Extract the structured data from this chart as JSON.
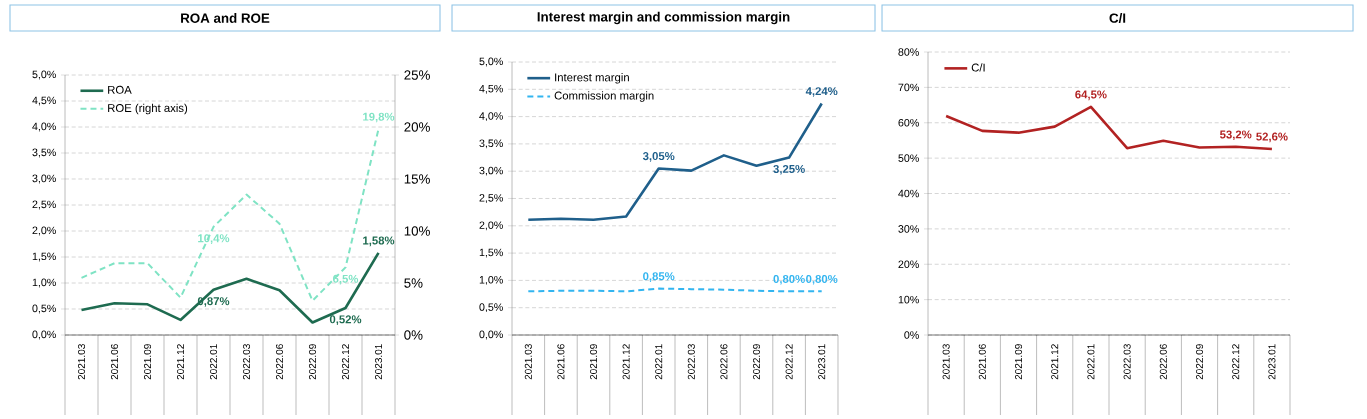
{
  "chart_data": [
    {
      "type": "line",
      "title": "ROA and ROE",
      "categories": [
        "2021.03",
        "2021.06",
        "2021.09",
        "2021.12",
        "2022.01",
        "2022.03",
        "2022.06",
        "2022.09",
        "2022.12",
        "2023.01"
      ],
      "series": [
        {
          "name": "ROA",
          "color": "#1e6b50",
          "line_style": "solid",
          "values": [
            0.48,
            0.61,
            0.59,
            0.29,
            0.87,
            1.08,
            0.86,
            0.24,
            0.52,
            1.58
          ],
          "value_labels": [
            null,
            null,
            null,
            null,
            "0,87%",
            null,
            null,
            null,
            "0,52%",
            "1,58%"
          ]
        },
        {
          "name": "ROE (right axis)",
          "color": "#7fe3c4",
          "line_style": "dashed",
          "axis": "y2",
          "values": [
            5.5,
            6.9,
            6.9,
            3.6,
            10.4,
            13.5,
            10.7,
            3.3,
            6.5,
            19.8
          ],
          "value_labels": [
            null,
            null,
            null,
            null,
            "10,4%",
            null,
            null,
            null,
            "6,5%",
            "19,8%"
          ]
        }
      ],
      "ylim": [
        0,
        5
      ],
      "yticks": [
        {
          "value": 0,
          "label": "0,0%"
        },
        {
          "value": 0.5,
          "label": "0,5%"
        },
        {
          "value": 1,
          "label": "1,0%"
        },
        {
          "value": 1.5,
          "label": "1,5%"
        },
        {
          "value": 2,
          "label": "2,0%"
        },
        {
          "value": 2.5,
          "label": "2,5%"
        },
        {
          "value": 3,
          "label": "3,0%"
        },
        {
          "value": 3.5,
          "label": "3,5%"
        },
        {
          "value": 4,
          "label": "4,0%"
        },
        {
          "value": 4.5,
          "label": "4,5%"
        },
        {
          "value": 5,
          "label": "5,0%"
        }
      ],
      "y2lim": [
        0,
        25
      ],
      "y2ticks": [
        {
          "value": 0,
          "label": "0%"
        },
        {
          "value": 5,
          "label": "5%"
        },
        {
          "value": 10,
          "label": "10%"
        },
        {
          "value": 15,
          "label": "15%"
        },
        {
          "value": 20,
          "label": "20%"
        },
        {
          "value": 25,
          "label": "25%"
        }
      ],
      "grid": "y",
      "legend": "top left"
    },
    {
      "type": "line",
      "title": "Interest margin and commission margin",
      "categories": [
        "2021.03",
        "2021.06",
        "2021.09",
        "2021.12",
        "2022.01",
        "2022.03",
        "2022.06",
        "2022.09",
        "2022.12",
        "2023.01"
      ],
      "series": [
        {
          "name": "Interest margin",
          "color": "#1f5f8b",
          "line_style": "solid",
          "values": [
            2.11,
            2.13,
            2.11,
            2.17,
            3.05,
            3.01,
            3.29,
            3.1,
            3.25,
            4.24
          ],
          "value_labels": [
            null,
            null,
            null,
            null,
            "3,05%",
            null,
            null,
            null,
            "3,25%",
            "4,24%"
          ]
        },
        {
          "name": "Commission margin",
          "color": "#33b5f0",
          "line_style": "dashed",
          "values": [
            0.8,
            0.81,
            0.81,
            0.8,
            0.85,
            0.84,
            0.83,
            0.81,
            0.8,
            0.8
          ],
          "value_labels": [
            null,
            null,
            null,
            null,
            "0,85%",
            null,
            null,
            null,
            "0,80%",
            "0,80%"
          ]
        }
      ],
      "ylim": [
        0,
        5
      ],
      "yticks": [
        {
          "value": 0,
          "label": "0,0%"
        },
        {
          "value": 0.5,
          "label": "0,5%"
        },
        {
          "value": 1,
          "label": "1,0%"
        },
        {
          "value": 1.5,
          "label": "1,5%"
        },
        {
          "value": 2,
          "label": "2,0%"
        },
        {
          "value": 2.5,
          "label": "2,5%"
        },
        {
          "value": 3,
          "label": "3,0%"
        },
        {
          "value": 3.5,
          "label": "3,5%"
        },
        {
          "value": 4,
          "label": "4,0%"
        },
        {
          "value": 4.5,
          "label": "4,5%"
        },
        {
          "value": 5,
          "label": "5,0%"
        }
      ],
      "grid": "y",
      "legend": "top left"
    },
    {
      "type": "line",
      "title": "C/I",
      "categories": [
        "2021.03",
        "2021.06",
        "2021.09",
        "2021.12",
        "2022.01",
        "2022.03",
        "2022.06",
        "2022.09",
        "2022.12",
        "2023.01"
      ],
      "series": [
        {
          "name": "C/I",
          "color": "#b22222",
          "line_style": "solid",
          "values": [
            61.9,
            57.7,
            57.2,
            58.9,
            64.5,
            52.8,
            54.9,
            53.0,
            53.2,
            52.6
          ],
          "value_labels": [
            null,
            null,
            null,
            null,
            "64,5%",
            null,
            null,
            null,
            "53,2%",
            "52,6%"
          ]
        }
      ],
      "ylim": [
        0,
        80
      ],
      "yticks": [
        {
          "value": 0,
          "label": "0%"
        },
        {
          "value": 10,
          "label": "10%"
        },
        {
          "value": 20,
          "label": "20%"
        },
        {
          "value": 30,
          "label": "30%"
        },
        {
          "value": 40,
          "label": "40%"
        },
        {
          "value": 50,
          "label": "50%"
        },
        {
          "value": 60,
          "label": "60%"
        },
        {
          "value": 70,
          "label": "70%"
        },
        {
          "value": 80,
          "label": "80%"
        }
      ],
      "grid": "y",
      "legend": "top left"
    }
  ]
}
